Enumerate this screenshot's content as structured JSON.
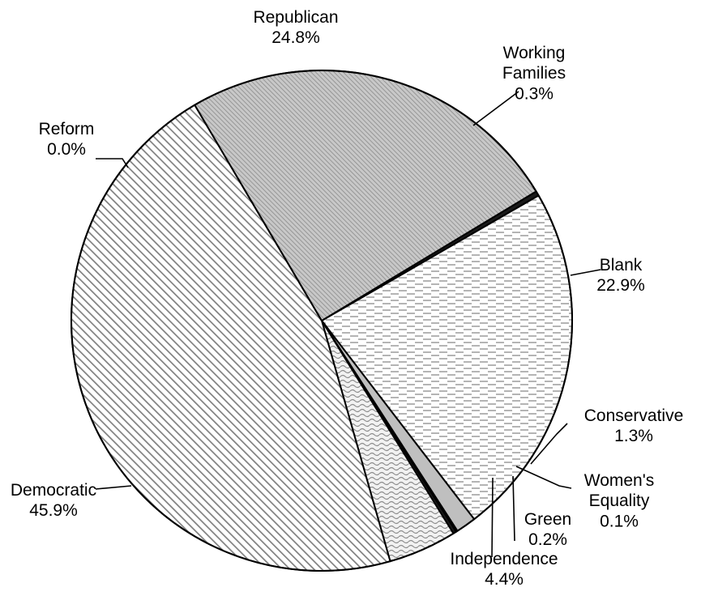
{
  "chart_data": {
    "type": "pie",
    "title": "",
    "start": "top-right, clockwise",
    "slices": [
      {
        "label": "Working Families",
        "label_lines": [
          "Working",
          "Families"
        ],
        "value": 0.3,
        "value_text": "0.3%",
        "pattern": "solid-dark"
      },
      {
        "label": "Blank",
        "label_lines": [
          "Blank"
        ],
        "value": 22.9,
        "value_text": "22.9%",
        "pattern": "dashes"
      },
      {
        "label": "Conservative",
        "label_lines": [
          "Conservative"
        ],
        "value": 1.3,
        "value_text": "1.3%",
        "pattern": "solid-gray"
      },
      {
        "label": "Women's Equality",
        "label_lines": [
          "Women's",
          "Equality"
        ],
        "value": 0.1,
        "value_text": "0.1%",
        "pattern": "solid-dark"
      },
      {
        "label": "Green",
        "label_lines": [
          "Green"
        ],
        "value": 0.2,
        "value_text": "0.2%",
        "pattern": "solid-dark"
      },
      {
        "label": "Independence",
        "label_lines": [
          "Independence"
        ],
        "value": 4.4,
        "value_text": "4.4%",
        "pattern": "waves"
      },
      {
        "label": "Democratic",
        "label_lines": [
          "Democratic"
        ],
        "value": 45.9,
        "value_text": "45.9%",
        "pattern": "diagonal-hatch"
      },
      {
        "label": "Reform",
        "label_lines": [
          "Reform"
        ],
        "value": 0.0,
        "value_text": "0.0%",
        "pattern": "none"
      },
      {
        "label": "Republican",
        "label_lines": [
          "Republican"
        ],
        "value": 24.8,
        "value_text": "24.8%",
        "pattern": "fine-hatch"
      }
    ],
    "colors": {
      "outline": "#000000",
      "solid_dark": "#1a1a1a",
      "solid_gray": "#bfbfbf",
      "pattern_ink": "#8c8c8c",
      "background": "#ffffff"
    }
  }
}
